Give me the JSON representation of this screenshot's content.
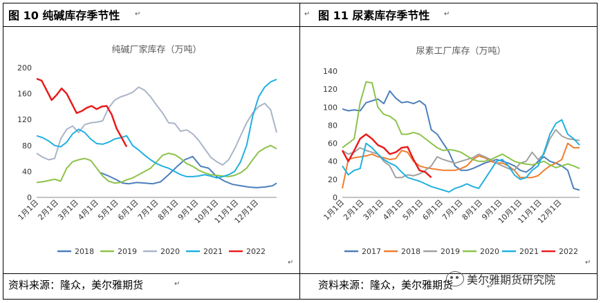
{
  "left_panel": {
    "figure_title": "图 10  纯碱库存季节性",
    "source": "资料来源：隆众，美尔雅期货"
  },
  "right_panel": {
    "figure_title": "图 11  尿素库存季节性",
    "source": "资料来源：隆众，美尔雅期货"
  },
  "watermark": "美尔雅期货研究院",
  "chart_data": [
    {
      "type": "line",
      "title": "纯碱厂家库存（万吨）",
      "ylim": [
        0,
        200
      ],
      "yticks": [
        0,
        40,
        80,
        120,
        160,
        200
      ],
      "categories": [
        "1月1日",
        "2月1日",
        "3月1日",
        "4月1日",
        "5月1日",
        "6月1日",
        "7月1日",
        "8月1日",
        "9月1日",
        "10月1日",
        "11月1日",
        "12月1日"
      ],
      "x_range": [
        0,
        12
      ],
      "legend_position": "bottom",
      "series": [
        {
          "name": "2018",
          "color": "#4a7ebb",
          "x": [
            3.2,
            3.6,
            4.0,
            4.3,
            4.6,
            5.0,
            5.4,
            5.8,
            6.2,
            6.6,
            7.0,
            7.4,
            7.8,
            8.2,
            8.6,
            9.0,
            9.4,
            9.8,
            10.2,
            10.6,
            11.0,
            11.4,
            11.8,
            12.0
          ],
          "y": [
            38,
            33,
            27,
            22,
            21,
            23,
            22,
            21,
            24,
            35,
            47,
            58,
            63,
            48,
            45,
            32,
            25,
            20,
            18,
            16,
            15,
            16,
            18,
            22
          ]
        },
        {
          "name": "2019",
          "color": "#8cc24a",
          "x": [
            0,
            0.3,
            0.6,
            0.9,
            1.2,
            1.5,
            1.8,
            2.1,
            2.4,
            2.7,
            3.0,
            3.3,
            3.6,
            3.9,
            4.2,
            4.5,
            4.8,
            5.1,
            5.4,
            5.7,
            6.0,
            6.3,
            6.6,
            6.9,
            7.2,
            7.5,
            7.8,
            8.1,
            8.4,
            8.7,
            9.0,
            9.3,
            9.6,
            9.9,
            10.2,
            10.5,
            10.8,
            11.1,
            11.4,
            11.7,
            12.0
          ],
          "y": [
            23,
            24,
            26,
            28,
            25,
            45,
            55,
            58,
            60,
            57,
            45,
            33,
            25,
            22,
            23,
            27,
            30,
            35,
            40,
            45,
            55,
            65,
            68,
            66,
            60,
            52,
            48,
            42,
            38,
            35,
            34,
            33,
            32,
            34,
            38,
            45,
            58,
            70,
            76,
            80,
            75
          ]
        },
        {
          "name": "2020",
          "color": "#a9b4c8",
          "x": [
            0,
            0.3,
            0.6,
            0.9,
            1.2,
            1.5,
            1.8,
            2.1,
            2.4,
            2.7,
            3.0,
            3.3,
            3.6,
            3.9,
            4.2,
            4.5,
            4.8,
            5.1,
            5.4,
            5.7,
            6.0,
            6.3,
            6.6,
            6.9,
            7.2,
            7.5,
            7.8,
            8.1,
            8.4,
            8.7,
            9.0,
            9.3,
            9.6,
            9.9,
            10.2,
            10.5,
            10.8,
            11.1,
            11.4,
            11.7,
            12.0
          ],
          "y": [
            68,
            62,
            58,
            60,
            90,
            105,
            110,
            100,
            112,
            115,
            116,
            118,
            138,
            150,
            155,
            158,
            162,
            170,
            165,
            155,
            142,
            130,
            115,
            114,
            102,
            104,
            98,
            88,
            75,
            62,
            55,
            50,
            58,
            75,
            95,
            115,
            130,
            140,
            145,
            135,
            100
          ]
        },
        {
          "name": "2021",
          "color": "#1fb0e0",
          "x": [
            0,
            0.3,
            0.6,
            0.9,
            1.2,
            1.5,
            1.8,
            2.1,
            2.4,
            2.7,
            3.0,
            3.3,
            3.6,
            3.9,
            4.2,
            4.5,
            4.8,
            5.1,
            5.4,
            5.7,
            6.0,
            6.3,
            6.6,
            6.9,
            7.2,
            7.5,
            7.8,
            8.1,
            8.4,
            8.7,
            9.0,
            9.3,
            9.6,
            9.9,
            10.2,
            10.5,
            10.8,
            11.1,
            11.4,
            11.7,
            12.0
          ],
          "y": [
            95,
            92,
            87,
            80,
            78,
            85,
            98,
            105,
            100,
            90,
            83,
            82,
            85,
            90,
            92,
            95,
            80,
            73,
            65,
            58,
            52,
            48,
            45,
            40,
            35,
            32,
            32,
            33,
            35,
            33,
            30,
            32,
            35,
            40,
            55,
            80,
            125,
            155,
            170,
            178,
            182
          ]
        },
        {
          "name": "2022",
          "color": "#e81b1b",
          "x": [
            0,
            0.25,
            0.5,
            0.75,
            1.0,
            1.25,
            1.5,
            1.75,
            2.0,
            2.25,
            2.5,
            2.75,
            3.0,
            3.25,
            3.5,
            3.75,
            4.0,
            4.25,
            4.5
          ],
          "y": [
            183,
            180,
            165,
            150,
            158,
            168,
            160,
            145,
            130,
            133,
            138,
            141,
            136,
            140,
            141,
            128,
            106,
            92,
            78
          ]
        }
      ]
    },
    {
      "type": "line",
      "title": "尿素工厂库存（万吨）",
      "ylim": [
        0,
        140
      ],
      "yticks": [
        0,
        20,
        40,
        60,
        80,
        100,
        120,
        140
      ],
      "categories": [
        "1月1日",
        "2月1日",
        "3月1日",
        "4月1日",
        "5月1日",
        "6月1日",
        "7月1日",
        "8月1日",
        "9月1日",
        "10月1日",
        "11月1日",
        "12月1日"
      ],
      "x_range": [
        0,
        12
      ],
      "legend_position": "bottom",
      "series": [
        {
          "name": "2017",
          "color": "#4a7ebb",
          "x": [
            0,
            0.3,
            0.6,
            0.9,
            1.2,
            1.5,
            1.8,
            2.1,
            2.4,
            2.7,
            3.0,
            3.3,
            3.6,
            3.9,
            4.2,
            4.5,
            4.8,
            5.1,
            5.4,
            5.7,
            6.0,
            6.3,
            6.6,
            6.9,
            7.2,
            7.5,
            7.8,
            8.1,
            8.4,
            8.7,
            9.0,
            9.3,
            9.6,
            9.9,
            10.2,
            10.5,
            10.8,
            11.1,
            11.4,
            11.7,
            12.0
          ],
          "y": [
            98,
            96,
            97,
            96,
            105,
            107,
            109,
            104,
            118,
            110,
            105,
            106,
            104,
            107,
            102,
            75,
            70,
            60,
            50,
            35,
            30,
            30,
            32,
            35,
            38,
            40,
            42,
            40,
            38,
            35,
            30,
            28,
            33,
            40,
            45,
            40,
            38,
            35,
            30,
            10,
            8
          ]
        },
        {
          "name": "2018",
          "color": "#f07d2e",
          "x": [
            0,
            0.3,
            0.6,
            0.9,
            1.2,
            1.5,
            1.8,
            2.1,
            2.4,
            2.7,
            3.0,
            3.3,
            3.6,
            3.9,
            4.2,
            4.5,
            4.8,
            5.1,
            5.4,
            5.7,
            6.0,
            6.3,
            6.6,
            6.9,
            7.2,
            7.5,
            7.8,
            8.1,
            8.4,
            8.7,
            9.0,
            9.3,
            9.6,
            9.9,
            10.2,
            10.5,
            10.8,
            11.1,
            11.4,
            11.7,
            12.0
          ],
          "y": [
            10,
            42,
            44,
            45,
            46,
            48,
            45,
            44,
            42,
            43,
            52,
            50,
            40,
            35,
            33,
            32,
            31,
            30,
            30,
            30,
            32,
            35,
            42,
            46,
            44,
            40,
            38,
            38,
            35,
            30,
            22,
            22,
            22,
            24,
            30,
            35,
            38,
            42,
            60,
            55,
            55
          ]
        },
        {
          "name": "2019",
          "color": "#a0a0a0",
          "x": [
            0,
            0.3,
            0.6,
            0.9,
            1.2,
            1.5,
            1.8,
            2.1,
            2.4,
            2.7,
            3.0,
            3.3,
            3.6,
            3.9,
            4.2,
            4.5,
            4.8,
            5.1,
            5.4,
            5.7,
            6.0,
            6.3,
            6.6,
            6.9,
            7.2,
            7.5,
            7.8,
            8.1,
            8.4,
            8.7,
            9.0,
            9.3,
            9.6,
            9.9,
            10.2,
            10.5,
            10.8,
            11.1,
            11.4,
            11.7,
            12.0
          ],
          "y": [
            52,
            48,
            50,
            55,
            52,
            50,
            48,
            40,
            35,
            22,
            22,
            25,
            24,
            26,
            30,
            35,
            45,
            42,
            40,
            38,
            40,
            42,
            44,
            48,
            45,
            42,
            38,
            35,
            32,
            30,
            38,
            40,
            50,
            42,
            48,
            65,
            75,
            68,
            65,
            64,
            63
          ]
        },
        {
          "name": "2020",
          "color": "#8cc24a",
          "x": [
            0,
            0.3,
            0.6,
            0.9,
            1.2,
            1.5,
            1.8,
            2.1,
            2.4,
            2.7,
            3.0,
            3.3,
            3.6,
            3.9,
            4.2,
            4.5,
            4.8,
            5.1,
            5.4,
            5.7,
            6.0,
            6.3,
            6.6,
            6.9,
            7.2,
            7.5,
            7.8,
            8.1,
            8.4,
            8.7,
            9.0,
            9.3,
            9.6,
            9.9,
            10.2,
            10.5,
            10.8,
            11.1,
            11.4,
            11.7,
            12.0
          ],
          "y": [
            55,
            60,
            65,
            105,
            128,
            127,
            100,
            92,
            90,
            85,
            70,
            70,
            72,
            70,
            65,
            60,
            55,
            52,
            53,
            52,
            50,
            46,
            42,
            40,
            40,
            42,
            45,
            48,
            44,
            40,
            38,
            37,
            36,
            38,
            40,
            36,
            33,
            35,
            37,
            35,
            32
          ]
        },
        {
          "name": "2021",
          "color": "#1fb0e0",
          "x": [
            0,
            0.3,
            0.6,
            0.9,
            1.2,
            1.5,
            1.8,
            2.1,
            2.4,
            2.7,
            3.0,
            3.3,
            3.6,
            3.9,
            4.2,
            4.5,
            4.8,
            5.1,
            5.4,
            5.7,
            6.0,
            6.3,
            6.6,
            6.9,
            7.2,
            7.5,
            7.8,
            8.1,
            8.4,
            8.7,
            9.0,
            9.3,
            9.6,
            9.9,
            10.2,
            10.5,
            10.8,
            11.1,
            11.4,
            11.7,
            12.0
          ],
          "y": [
            35,
            25,
            30,
            32,
            60,
            55,
            48,
            42,
            38,
            35,
            28,
            22,
            20,
            18,
            15,
            12,
            10,
            8,
            6,
            10,
            12,
            15,
            12,
            10,
            20,
            30,
            40,
            42,
            35,
            25,
            20,
            22,
            30,
            35,
            50,
            70,
            82,
            86,
            70,
            65,
            58
          ]
        },
        {
          "name": "2022",
          "color": "#e81b1b",
          "x": [
            0,
            0.3,
            0.6,
            0.9,
            1.2,
            1.5,
            1.8,
            2.1,
            2.4,
            2.7,
            3.0,
            3.3,
            3.6,
            3.9,
            4.2,
            4.5
          ],
          "y": [
            52,
            40,
            52,
            65,
            70,
            65,
            58,
            55,
            48,
            50,
            55,
            56,
            42,
            30,
            28,
            22
          ]
        }
      ]
    }
  ]
}
